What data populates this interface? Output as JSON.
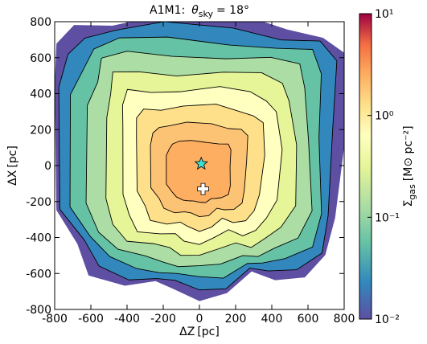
{
  "chart_data": {
    "type": "contour",
    "title": {
      "prefix": "A1M1:",
      "symbol": "θ",
      "subscript": "sky",
      "suffix": "= 18°"
    },
    "x_label": {
      "symbol": "ΔZ",
      "unit": "[pc]"
    },
    "y_label": {
      "symbol": "ΔX",
      "unit": "[pc]"
    },
    "xlim": [
      -800,
      800
    ],
    "xticks": [
      -800,
      -600,
      -400,
      -200,
      0,
      200,
      400,
      600,
      800
    ],
    "ylim": [
      -800,
      800
    ],
    "yticks": [
      -800,
      -600,
      -400,
      -200,
      0,
      200,
      400,
      600,
      800
    ],
    "markers": [
      {
        "shape": "star",
        "x": 10,
        "y": 10,
        "color": "#40e0d0"
      },
      {
        "shape": "cross",
        "x": 20,
        "y": -130,
        "color": "#ffffff"
      }
    ],
    "colorbar": {
      "scale": "log",
      "lim": [
        0.01,
        10
      ],
      "ticks": [
        {
          "value": 0.01,
          "label": "10⁻²"
        },
        {
          "value": 0.1,
          "label": "10⁻¹"
        },
        {
          "value": 1,
          "label": "10⁰"
        },
        {
          "value": 10,
          "label": "10¹"
        }
      ],
      "label": {
        "symbol": "Σ",
        "subscript": "gas",
        "unit": "[M⊙ pc⁻²]"
      }
    }
  }
}
